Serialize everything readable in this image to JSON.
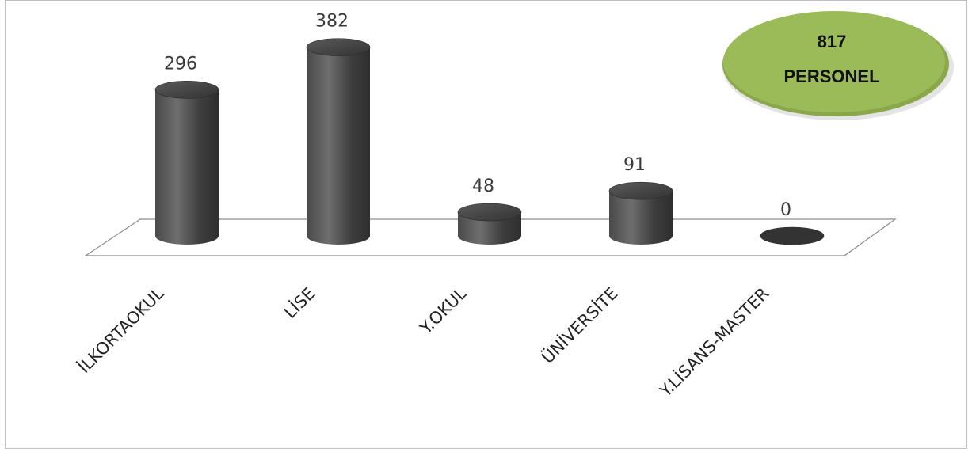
{
  "chart_data": {
    "type": "bar",
    "style": "3d-cylinder",
    "title": "",
    "xlabel": "",
    "ylabel": "",
    "categories": [
      "İLKORTAOKUL",
      "LİSE",
      "Y.OKUL",
      "ÜNİVERSİTE",
      "Y.LİSANS-MASTER"
    ],
    "values": [
      296,
      382,
      48,
      91,
      0
    ],
    "ylim": [
      0,
      400
    ],
    "grid": false,
    "legend": "none",
    "bar_color": "#555555"
  },
  "badge": {
    "value": "817",
    "label": "PERSONEL",
    "color": "#9bbb59"
  }
}
